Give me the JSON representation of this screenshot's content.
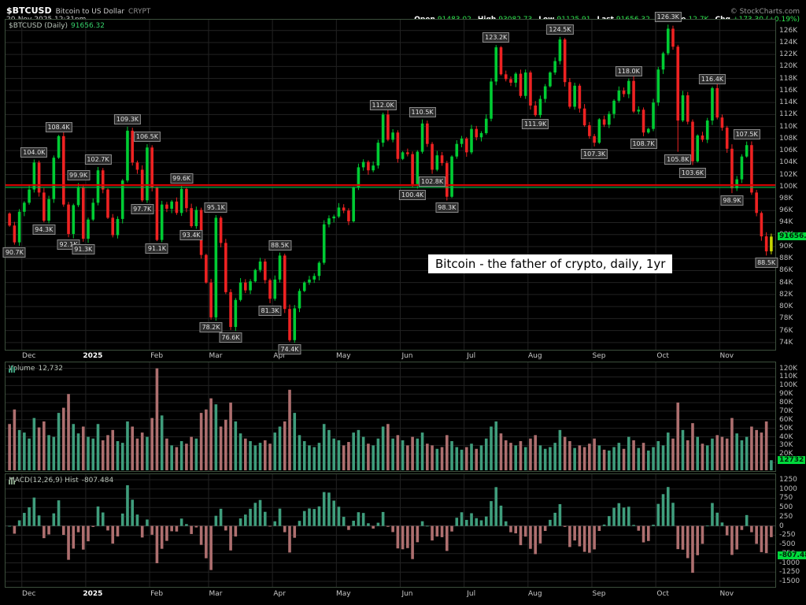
{
  "header": {
    "symbol": "$BTCUSD",
    "description": "Bitcoin to US Dollar",
    "exchange": "CRYPT",
    "datetime": "20-Nov-2025 12:31pm",
    "copyright": "© StockCharts.com",
    "quote": [
      {
        "label": "Open",
        "value": "91483.02"
      },
      {
        "label": "High",
        "value": "93082.73"
      },
      {
        "label": "Low",
        "value": "91125.91"
      },
      {
        "label": "Last",
        "value": "91656.32"
      },
      {
        "label": "Volume",
        "value": "12.7K"
      },
      {
        "label": "Chg",
        "value": "+173.30 (+0.19%)"
      }
    ]
  },
  "annotation": "Bitcoin - the father of crypto, daily, 1yr",
  "panes": {
    "price": {
      "title_symbol": "$BTCUSD (Daily)",
      "title_value": "91656.32",
      "marker": "91656.32"
    },
    "volume": {
      "title_label": "Volume",
      "title_value": "12,732",
      "marker": "12732"
    },
    "macd": {
      "title_label": "MACD(12,26,9) Hist",
      "title_value": "-807.484",
      "marker": "-807.484"
    }
  },
  "colors": {
    "up": "#00cc33",
    "down": "#ee2222",
    "last_candle": "#c8d400",
    "vol_up": "#3f9d7c",
    "vol_down": "#ae6f6f",
    "macd_up": "#3f9d7c",
    "macd_down": "#ae6f6f",
    "hline_red": "#dd0000",
    "hline_green": "#00bb44",
    "grid": "#222222",
    "zero_line": "#3c3c3c",
    "axis_text": "#bdbdbd",
    "marker_bg": "#00d93c"
  },
  "chart_data": [
    {
      "type": "candlestick",
      "title": "$BTCUSD (Daily)",
      "units": "thousands of USD",
      "first_open_k": 95.5,
      "closes_k": [
        93.5,
        90.7,
        95.8,
        97.3,
        99.5,
        104.0,
        99.0,
        94.3,
        97.9,
        104.8,
        108.4,
        97.0,
        92.1,
        96.9,
        99.9,
        91.3,
        94.5,
        97.3,
        102.7,
        99.5,
        94.8,
        91.9,
        94.6,
        101.0,
        109.3,
        104.0,
        102.8,
        97.7,
        106.5,
        99.8,
        91.1,
        97.0,
        96.3,
        97.5,
        95.6,
        99.6,
        96.4,
        93.4,
        96.1,
        88.6,
        84.0,
        78.2,
        94.8,
        90.6,
        82.4,
        76.6,
        81.1,
        84.0,
        82.7,
        84.2,
        86.1,
        87.5,
        84.4,
        81.3,
        84.5,
        88.5,
        79.6,
        74.4,
        79.7,
        82.6,
        84.0,
        84.5,
        85.1,
        87.3,
        93.7,
        94.7,
        95.0,
        96.5,
        96.0,
        94.2,
        99.8,
        103.2,
        104.1,
        102.7,
        103.5,
        107.3,
        112.0,
        107.8,
        109.0,
        104.6,
        105.7,
        105.4,
        100.4,
        105.8,
        110.5,
        107.1,
        102.8,
        105.2,
        103.9,
        98.3,
        105.0,
        107.1,
        108.0,
        105.7,
        109.6,
        108.2,
        108.9,
        111.3,
        117.5,
        123.2,
        118.7,
        117.9,
        117.3,
        118.8,
        115.1,
        119.0,
        113.5,
        111.9,
        114.6,
        116.7,
        119.0,
        120.9,
        124.5,
        117.4,
        113.3,
        116.8,
        113.0,
        110.2,
        108.4,
        107.3,
        111.2,
        110.3,
        112.1,
        114.3,
        116.0,
        115.4,
        117.6,
        112.5,
        112.8,
        109.0,
        109.6,
        114.0,
        119.5,
        122.2,
        126.3,
        123.3,
        111.0,
        115.2,
        110.8,
        104.2,
        108.5,
        107.8,
        111.0,
        116.4,
        111.5,
        109.8,
        106.3,
        99.7,
        101.2,
        105.0,
        106.9,
        99.0,
        95.6,
        91.7,
        89.2,
        91.656
      ],
      "months": [
        {
          "label": "Dec",
          "i": 3
        },
        {
          "label": "2025",
          "i": 16,
          "bold": true
        },
        {
          "label": "Feb",
          "i": 29
        },
        {
          "label": "Mar",
          "i": 41
        },
        {
          "label": "Apr",
          "i": 54
        },
        {
          "label": "May",
          "i": 67
        },
        {
          "label": "Jun",
          "i": 80
        },
        {
          "label": "Jul",
          "i": 93
        },
        {
          "label": "Aug",
          "i": 106
        },
        {
          "label": "Sep",
          "i": 119
        },
        {
          "label": "Oct",
          "i": 132
        },
        {
          "label": "Nov",
          "i": 145
        }
      ],
      "ylim_k": [
        74,
        126
      ],
      "y_tick_step_k": 2,
      "plot_ylim_k": [
        72.8,
        127.8
      ],
      "hlines_k": [
        {
          "value": 100.25,
          "color": "red"
        },
        {
          "value": 99.85,
          "color": "green"
        }
      ],
      "swing_labels": [
        {
          "i": 1,
          "text": "90.7K",
          "pos": "below"
        },
        {
          "i": 5,
          "text": "104.0K",
          "pos": "above"
        },
        {
          "i": 7,
          "text": "94.3K",
          "pos": "below"
        },
        {
          "i": 10,
          "text": "108.4K",
          "pos": "above"
        },
        {
          "i": 12,
          "text": "92.1K",
          "pos": "below"
        },
        {
          "i": 14,
          "text": "99.9K",
          "pos": "above"
        },
        {
          "i": 15,
          "text": "91.3K",
          "pos": "below"
        },
        {
          "i": 18,
          "text": "102.7K",
          "pos": "above"
        },
        {
          "i": 24,
          "text": "109.3K",
          "pos": "above"
        },
        {
          "i": 27,
          "text": "97.7K",
          "pos": "below"
        },
        {
          "i": 28,
          "text": "106.5K",
          "pos": "above"
        },
        {
          "i": 30,
          "text": "91.1K",
          "pos": "below"
        },
        {
          "i": 35,
          "text": "99.6K",
          "pos": "above"
        },
        {
          "i": 37,
          "text": "93.4K",
          "pos": "below"
        },
        {
          "i": 41,
          "text": "78.2K",
          "pos": "below"
        },
        {
          "i": 42,
          "text": "95.1K",
          "pos": "above"
        },
        {
          "i": 45,
          "text": "76.6K",
          "pos": "below"
        },
        {
          "i": 53,
          "text": "81.3K",
          "pos": "below"
        },
        {
          "i": 55,
          "text": "88.5K",
          "pos": "above"
        },
        {
          "i": 57,
          "text": "74.4K",
          "pos": "below"
        },
        {
          "i": 76,
          "text": "112.0K",
          "pos": "above"
        },
        {
          "i": 82,
          "text": "100.4K",
          "pos": "below"
        },
        {
          "i": 84,
          "text": "110.5K",
          "pos": "above"
        },
        {
          "i": 86,
          "text": "102.8K",
          "pos": "below"
        },
        {
          "i": 89,
          "text": "98.3K",
          "pos": "below"
        },
        {
          "i": 99,
          "text": "123.2K",
          "pos": "above"
        },
        {
          "i": 107,
          "text": "111.9K",
          "pos": "below"
        },
        {
          "i": 112,
          "text": "124.5K",
          "pos": "above"
        },
        {
          "i": 119,
          "text": "107.3K",
          "pos": "below"
        },
        {
          "i": 126,
          "text": "118.0K",
          "pos": "above"
        },
        {
          "i": 129,
          "text": "108.7K",
          "pos": "below"
        },
        {
          "i": 134,
          "text": "126.3K",
          "pos": "above"
        },
        {
          "i": 136,
          "text": "105.8K",
          "pos": "below"
        },
        {
          "i": 139,
          "text": "103.6K",
          "pos": "below"
        },
        {
          "i": 143,
          "text": "116.4K",
          "pos": "above"
        },
        {
          "i": 147,
          "text": "98.9K",
          "pos": "below"
        },
        {
          "i": 150,
          "text": "107.5K",
          "pos": "above"
        },
        {
          "i": 154,
          "text": "88.5K",
          "pos": "below"
        }
      ],
      "last_price": 91656.32
    },
    {
      "type": "bar",
      "name": "Volume",
      "units": "thousands",
      "values_k": [
        55,
        72,
        48,
        45,
        38,
        62,
        51,
        58,
        42,
        40,
        68,
        74,
        90,
        55,
        44,
        52,
        40,
        38,
        55,
        36,
        42,
        48,
        35,
        33,
        58,
        52,
        38,
        45,
        40,
        62,
        120,
        65,
        38,
        30,
        28,
        35,
        32,
        40,
        38,
        68,
        72,
        85,
        78,
        52,
        60,
        80,
        58,
        44,
        38,
        35,
        30,
        33,
        36,
        32,
        45,
        52,
        58,
        95,
        68,
        42,
        35,
        30,
        28,
        33,
        55,
        48,
        38,
        36,
        30,
        34,
        45,
        48,
        40,
        32,
        30,
        38,
        52,
        55,
        38,
        42,
        36,
        30,
        40,
        38,
        45,
        32,
        30,
        26,
        28,
        42,
        35,
        28,
        25,
        28,
        32,
        26,
        30,
        38,
        52,
        58,
        44,
        36,
        33,
        30,
        35,
        28,
        38,
        42,
        30,
        26,
        28,
        33,
        48,
        40,
        35,
        27,
        30,
        28,
        32,
        38,
        30,
        25,
        24,
        28,
        33,
        26,
        40,
        36,
        27,
        33,
        24,
        28,
        35,
        30,
        45,
        38,
        80,
        48,
        36,
        56,
        40,
        32,
        30,
        38,
        42,
        40,
        38,
        62,
        44,
        36,
        40,
        52,
        48,
        45,
        58,
        12.7
      ],
      "ylim_k": [
        0,
        127
      ],
      "y_ticks_k": [
        120,
        110,
        100,
        90,
        80,
        70,
        60,
        50,
        40,
        30,
        20,
        10
      ],
      "last_value": 12732
    },
    {
      "type": "bar",
      "name": "MACD(12,26,9) Histogram",
      "derived_from_closes": true,
      "params": {
        "fast": 5,
        "slow": 11,
        "signal": 4,
        "scale": 0.75
      },
      "ylim": [
        -1650,
        1400
      ],
      "y_ticks": [
        1250,
        1000,
        750,
        500,
        250,
        0,
        -250,
        -500,
        -750,
        -1000,
        -1250,
        -1500
      ],
      "last_value": -807.484
    }
  ]
}
